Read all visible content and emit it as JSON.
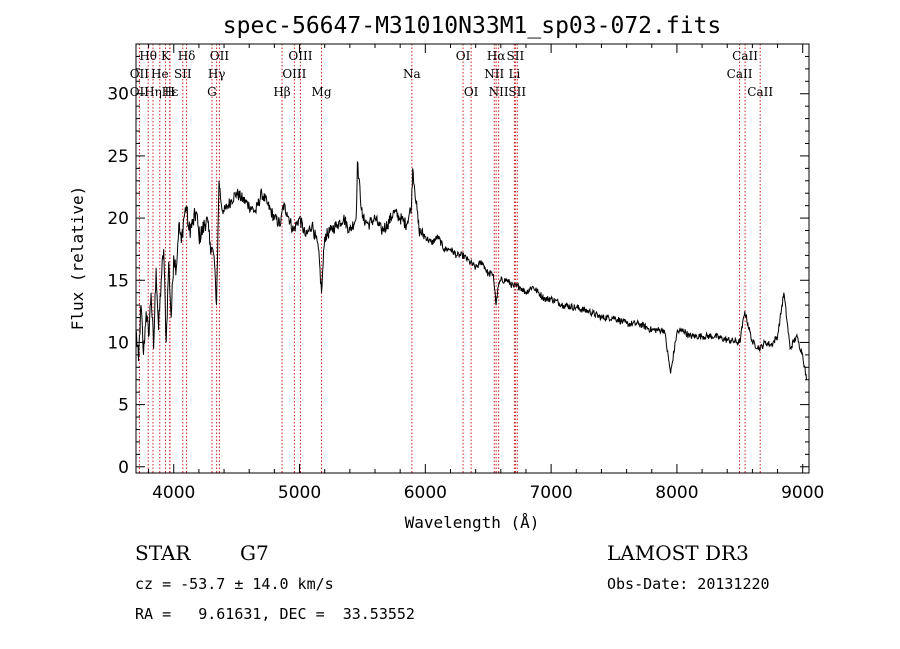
{
  "chart_data": {
    "type": "line",
    "title": "spec-56647-M31010N33M1_sp03-072.fits",
    "xlabel": "Wavelength (Å)",
    "ylabel": "Flux (relative)",
    "xlim": [
      3700,
      9050
    ],
    "ylim": [
      -0.5,
      34
    ],
    "xticks": [
      4000,
      5000,
      6000,
      7000,
      8000,
      9000
    ],
    "yticks": [
      0,
      5,
      10,
      15,
      20,
      25,
      30
    ],
    "series": [
      {
        "name": "spectrum",
        "x": [
          3700,
          3720,
          3740,
          3760,
          3780,
          3800,
          3820,
          3840,
          3860,
          3880,
          3900,
          3920,
          3940,
          3960,
          3980,
          4000,
          4020,
          4040,
          4060,
          4080,
          4100,
          4120,
          4150,
          4180,
          4200,
          4230,
          4260,
          4290,
          4320,
          4340,
          4360,
          4380,
          4400,
          4430,
          4460,
          4500,
          4550,
          4600,
          4650,
          4700,
          4750,
          4800,
          4850,
          4870,
          4900,
          4950,
          5000,
          5050,
          5100,
          5150,
          5175,
          5200,
          5250,
          5300,
          5350,
          5400,
          5450,
          5460,
          5500,
          5550,
          5600,
          5650,
          5700,
          5750,
          5800,
          5850,
          5890,
          5900,
          5950,
          6000,
          6050,
          6100,
          6150,
          6200,
          6250,
          6300,
          6350,
          6400,
          6450,
          6500,
          6540,
          6563,
          6580,
          6600,
          6650,
          6700,
          6750,
          6800,
          6850,
          6900,
          6950,
          7000,
          7100,
          7200,
          7300,
          7400,
          7500,
          7600,
          7700,
          7800,
          7900,
          7950,
          8000,
          8050,
          8100,
          8200,
          8300,
          8400,
          8500,
          8540,
          8600,
          8662,
          8700,
          8750,
          8800,
          8850,
          8900,
          8950,
          9000,
          9030
        ],
        "values": [
          11.0,
          8.5,
          13.0,
          9.0,
          12.5,
          10.5,
          14.0,
          9.5,
          16.0,
          11.0,
          15.0,
          17.5,
          10.0,
          16.5,
          12.0,
          17.0,
          16.0,
          19.5,
          18.0,
          20.0,
          21.0,
          19.0,
          19.5,
          20.5,
          18.5,
          19.0,
          20.0,
          18.0,
          17.0,
          13.0,
          23.0,
          21.0,
          20.5,
          21.0,
          21.5,
          22.0,
          21.5,
          21.0,
          20.5,
          22.0,
          21.0,
          20.0,
          19.5,
          21.0,
          20.5,
          19.0,
          20.0,
          18.5,
          19.5,
          17.5,
          14.0,
          18.5,
          19.0,
          19.5,
          20.0,
          19.0,
          20.0,
          24.5,
          20.0,
          19.5,
          20.0,
          19.0,
          19.5,
          20.5,
          20.0,
          19.5,
          21.0,
          24.0,
          19.0,
          18.5,
          18.0,
          18.5,
          17.5,
          17.5,
          17.0,
          17.0,
          16.5,
          16.0,
          16.5,
          15.5,
          15.5,
          13.0,
          14.5,
          15.0,
          15.0,
          14.5,
          14.5,
          14.0,
          14.5,
          14.0,
          13.5,
          13.5,
          13.0,
          12.8,
          12.5,
          12.0,
          12.0,
          11.5,
          11.5,
          11.0,
          11.0,
          7.5,
          10.8,
          11.0,
          10.5,
          10.5,
          10.5,
          10.2,
          10.0,
          12.5,
          10.0,
          9.5,
          10.0,
          9.8,
          10.5,
          14.0,
          9.5,
          10.5,
          9.0,
          7.0
        ]
      }
    ],
    "lines_top": [
      {
        "label": "Hθ",
        "x": 3797
      },
      {
        "label": "K",
        "x": 3934
      },
      {
        "label": "Hδ",
        "x": 4102
      },
      {
        "label": "OII",
        "x": 4363
      },
      {
        "label": "OIII",
        "x": 5007
      },
      {
        "label": "OI",
        "x": 6300
      },
      {
        "label": "Hα",
        "x": 6563
      },
      {
        "label": "SII",
        "x": 6716
      },
      {
        "label": "CaII",
        "x": 8542
      }
    ],
    "lines_mid": [
      {
        "label": "OII",
        "x": 3727
      },
      {
        "label": "He",
        "x": 3889
      },
      {
        "label": "SII",
        "x": 4072
      },
      {
        "label": "Hγ",
        "x": 4341
      },
      {
        "label": "OIII",
        "x": 4959
      },
      {
        "label": "Na",
        "x": 5893
      },
      {
        "label": "NII",
        "x": 6548
      },
      {
        "label": "Li",
        "x": 6708
      },
      {
        "label": "CaII",
        "x": 8498
      }
    ],
    "lines_low": [
      {
        "label": "OII",
        "x": 3727
      },
      {
        "label": "Hε",
        "x": 3970
      },
      {
        "label": "Hη",
        "x": 3835
      },
      {
        "label": "H",
        "x": 3968
      },
      {
        "label": "G",
        "x": 4304
      },
      {
        "label": "Hβ",
        "x": 4861
      },
      {
        "label": "Mg",
        "x": 5175
      },
      {
        "label": "OI",
        "x": 6364
      },
      {
        "label": "NII",
        "x": 6583
      },
      {
        "label": "SII",
        "x": 6731
      },
      {
        "label": "CaII",
        "x": 8662
      }
    ],
    "marker_lines": [
      3727,
      3797,
      3835,
      3889,
      3934,
      3968,
      3970,
      4072,
      4102,
      4304,
      4341,
      4363,
      4861,
      4959,
      5007,
      5175,
      5893,
      6300,
      6364,
      6548,
      6563,
      6583,
      6708,
      6716,
      6731,
      8498,
      8542,
      8662
    ]
  },
  "info": {
    "class": "STAR",
    "subclass": "G7",
    "survey": "LAMOST DR3",
    "cz": "cz = -53.7 ± 14.0 km/s",
    "obs_date": "Obs-Date: 20131220",
    "coords": "RA =   9.61631, DEC =  33.53552"
  },
  "colors": {
    "line_marker": "#cc2020",
    "spectrum": "#000000"
  }
}
